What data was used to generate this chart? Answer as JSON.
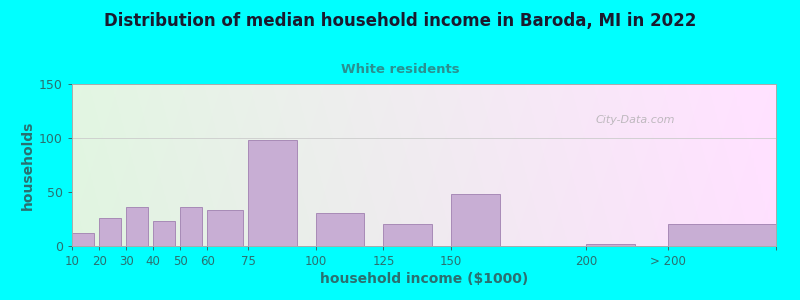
{
  "title": "Distribution of median household income in Baroda, MI in 2022",
  "subtitle": "White residents",
  "xlabel": "household income ($1000)",
  "ylabel": "households",
  "background_color": "#00FFFF",
  "bar_color": "#c8aed4",
  "bar_edge_color": "#a080b0",
  "title_color": "#1a1a2e",
  "subtitle_color": "#2a9090",
  "axis_label_color": "#2a7070",
  "tick_label_color": "#2a7070",
  "watermark": "City-Data.com",
  "ylim": [
    0,
    150
  ],
  "yticks": [
    0,
    50,
    100,
    150
  ],
  "bar_heights": [
    12,
    26,
    36,
    23,
    36,
    33,
    98,
    31,
    20,
    48,
    2,
    20
  ],
  "bar_lefts": [
    10,
    20,
    30,
    40,
    50,
    60,
    75,
    100,
    125,
    150,
    200,
    230
  ],
  "bar_widths": [
    8,
    8,
    8,
    8,
    8,
    13,
    18,
    18,
    18,
    18,
    18,
    40
  ],
  "x_tick_positions": [
    10,
    20,
    30,
    40,
    50,
    60,
    75,
    100,
    125,
    150,
    200,
    230,
    270
  ],
  "x_tick_labels": [
    "10",
    "20",
    "30",
    "40",
    "50",
    "60",
    "75",
    "100",
    "125",
    "150",
    "200",
    "> 200",
    ""
  ],
  "xlim": [
    10,
    270
  ]
}
